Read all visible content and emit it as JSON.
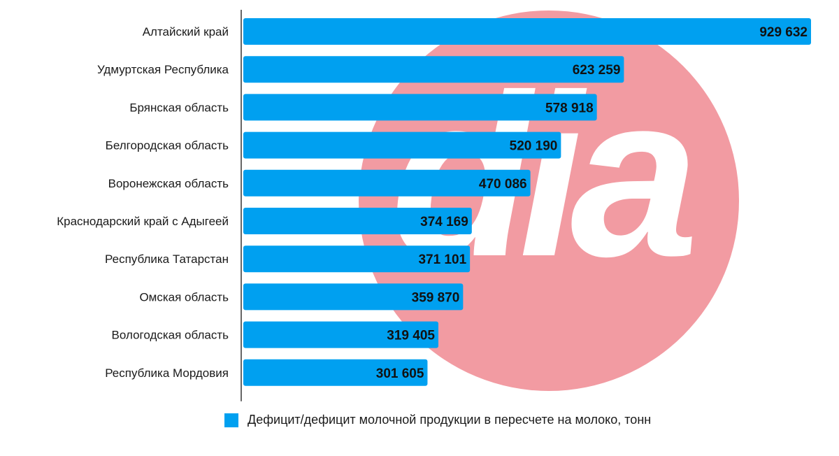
{
  "chart_data": {
    "type": "bar",
    "orientation": "horizontal",
    "categories": [
      "Алтайский край",
      "Удмуртская  Республика",
      "Брянская область",
      "Белгородская область",
      "Воронежская область",
      "Краснодарский край с Адыгеей",
      "Республика Татарстан",
      "Омская область",
      "Вологодская область",
      "Республика Мордовия"
    ],
    "series": [
      {
        "name": "Дефицит/дефицит молочной продукции в пересчете на молоко, тонн",
        "values": [
          929632,
          623259,
          578918,
          520190,
          470086,
          374169,
          371101,
          359870,
          319405,
          301605
        ],
        "value_labels": [
          "929 632",
          "623 259",
          "578 918",
          "520 190",
          "470 086",
          "374 169",
          "371 101",
          "359 870",
          "319 405",
          "301 605"
        ],
        "color": "#00a0f0"
      }
    ],
    "xlim": [
      0,
      929632
    ],
    "grid": false,
    "legend_position": "bottom",
    "watermark": {
      "text": "dia",
      "circle_color": "#f29ba2",
      "letter_color": "#ffffff"
    }
  }
}
